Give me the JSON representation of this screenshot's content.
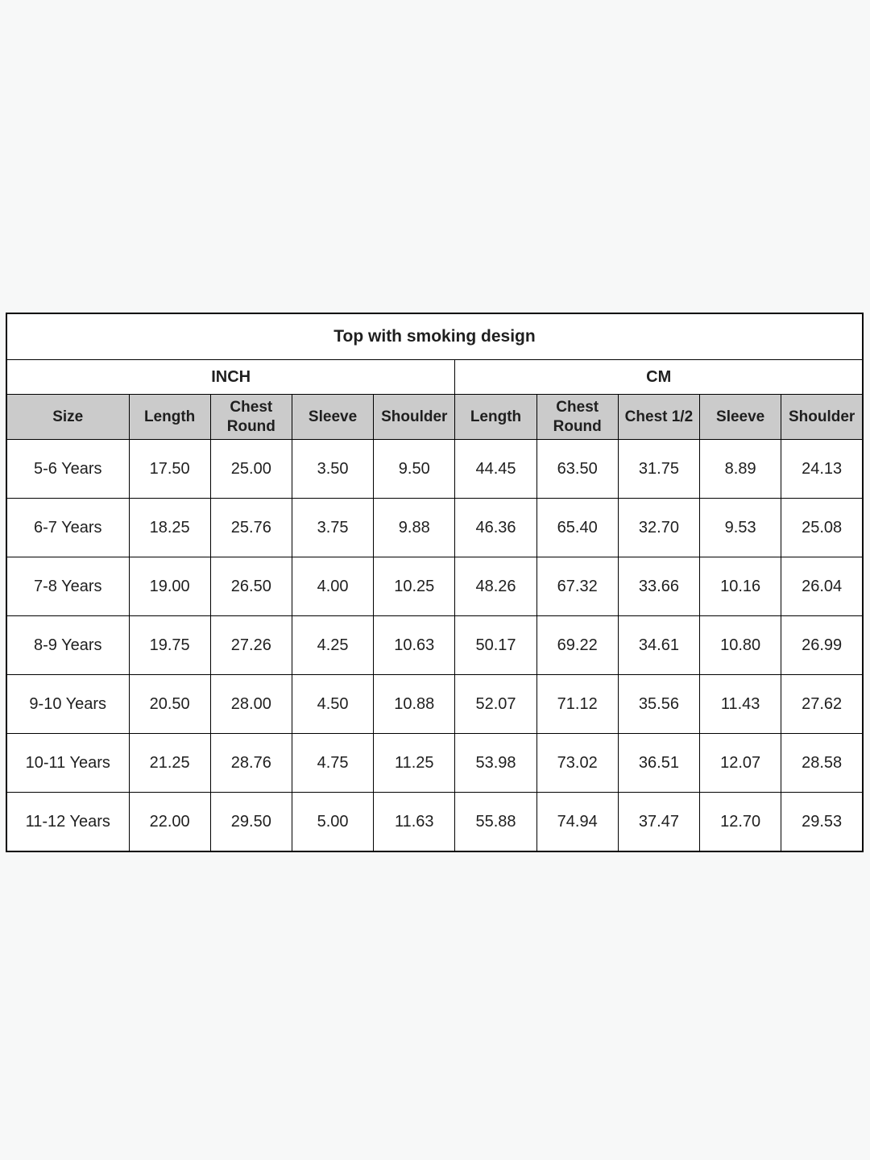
{
  "page": {
    "background": "#f7f8f8"
  },
  "chart_data": {
    "type": "table",
    "title": "Top with smoking design",
    "unit_groups": [
      {
        "label": "INCH",
        "colspan": 5
      },
      {
        "label": "CM",
        "colspan": 5
      }
    ],
    "columns": [
      "Size",
      "Length",
      "Chest Round",
      "Sleeve",
      "Shoulder",
      "Length",
      "Chest Round",
      "Chest 1/2",
      "Sleeve",
      "Shoulder"
    ],
    "rows": [
      [
        "5-6 Years",
        "17.50",
        "25.00",
        "3.50",
        "9.50",
        "44.45",
        "63.50",
        "31.75",
        "8.89",
        "24.13"
      ],
      [
        "6-7 Years",
        "18.25",
        "25.76",
        "3.75",
        "9.88",
        "46.36",
        "65.40",
        "32.70",
        "9.53",
        "25.08"
      ],
      [
        "7-8 Years",
        "19.00",
        "26.50",
        "4.00",
        "10.25",
        "48.26",
        "67.32",
        "33.66",
        "10.16",
        "26.04"
      ],
      [
        "8-9 Years",
        "19.75",
        "27.26",
        "4.25",
        "10.63",
        "50.17",
        "69.22",
        "34.61",
        "10.80",
        "26.99"
      ],
      [
        "9-10 Years",
        "20.50",
        "28.00",
        "4.50",
        "10.88",
        "52.07",
        "71.12",
        "35.56",
        "11.43",
        "27.62"
      ],
      [
        "10-11 Years",
        "21.25",
        "28.76",
        "4.75",
        "11.25",
        "53.98",
        "73.02",
        "36.51",
        "12.07",
        "28.58"
      ],
      [
        "11-12 Years",
        "22.00",
        "29.50",
        "5.00",
        "11.63",
        "55.88",
        "74.94",
        "37.47",
        "12.70",
        "29.53"
      ]
    ],
    "colors": {
      "page_bg": "#f7f8f8",
      "table_bg": "#ffffff",
      "header_bg": "#cbcbcb",
      "border": "#000000",
      "text": "#1f1f1f"
    },
    "layout": {
      "grid": "full",
      "legend_position": "none"
    }
  }
}
